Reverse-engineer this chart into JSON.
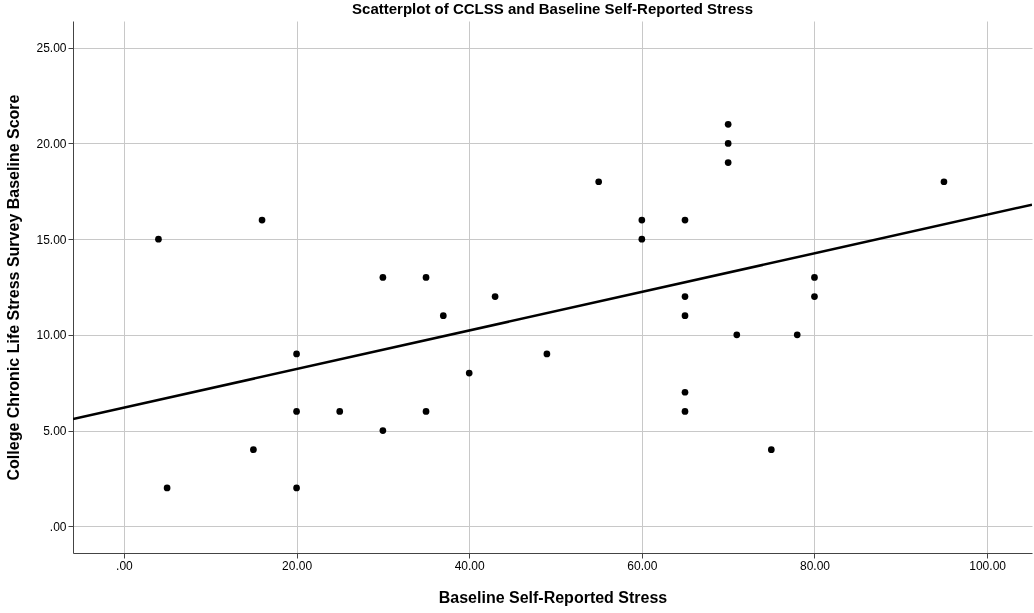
{
  "chart_data": {
    "type": "scatter",
    "title": "Scatterplot of CCLSS and Baseline Self-Reported Stress",
    "xlabel": "Baseline Self-Reported Stress",
    "ylabel": "College Chronic Life Stress Survey Baseline Score",
    "xlim": [
      -5.9,
      105.2
    ],
    "ylim": [
      -1.4,
      26.4
    ],
    "xticks": [
      {
        "value": 0,
        "label": ".00"
      },
      {
        "value": 20,
        "label": "20.00"
      },
      {
        "value": 40,
        "label": "40.00"
      },
      {
        "value": 60,
        "label": "60.00"
      },
      {
        "value": 80,
        "label": "80.00"
      },
      {
        "value": 100,
        "label": "100.00"
      }
    ],
    "yticks": [
      {
        "value": 0,
        "label": ".00"
      },
      {
        "value": 5,
        "label": "5.00"
      },
      {
        "value": 10,
        "label": "10.00"
      },
      {
        "value": 15,
        "label": "15.00"
      },
      {
        "value": 20,
        "label": "20.00"
      },
      {
        "value": 25,
        "label": "25.00"
      }
    ],
    "grid": true,
    "series": [
      {
        "marker": "circle",
        "color": "#000000",
        "x": [
          4,
          5,
          15,
          16,
          20,
          20,
          20,
          25,
          30,
          30,
          35,
          35,
          37,
          40,
          43,
          49,
          55,
          60,
          60,
          65,
          65,
          65,
          65,
          65,
          70,
          70,
          70,
          71,
          75,
          78,
          80,
          80,
          95
        ],
        "values": [
          15,
          2,
          4,
          16,
          9,
          6,
          2,
          6,
          13,
          5,
          13,
          6,
          11,
          8,
          12,
          9,
          18,
          16,
          15,
          16,
          12,
          11,
          7,
          6,
          21,
          20,
          19,
          10,
          4,
          10,
          13,
          12,
          18
        ]
      },
      {
        "type": "line",
        "marker": "none",
        "color": "#000000",
        "x": [
          -5.9,
          105.2
        ],
        "values": [
          5.6,
          16.8
        ]
      }
    ]
  }
}
